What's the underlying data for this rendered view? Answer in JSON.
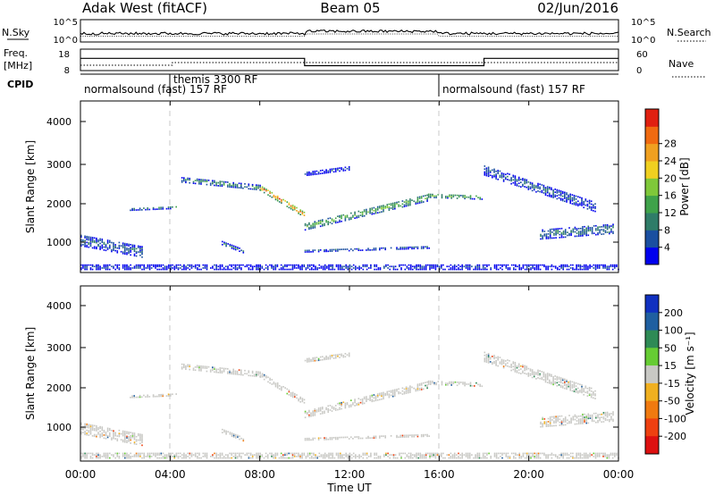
{
  "header": {
    "station": "Adak West (fitACF)",
    "beam": "Beam 05",
    "date": "02/Jun/2016"
  },
  "noise_panel": {
    "left_label": "N.Sky",
    "right_label": "N.Search",
    "left_ticks": [
      "10^5",
      "10^0"
    ],
    "right_ticks": [
      "10^5",
      "10^0"
    ]
  },
  "freq_panel": {
    "left_label_1": "Freq.",
    "left_label_2": "[MHz]",
    "right_label": "Nave",
    "left_ticks": [
      "18",
      "8"
    ],
    "right_ticks": [
      "60",
      "0"
    ],
    "freq_series": [
      {
        "t": 0,
        "v": 13.7
      },
      {
        "t": 10,
        "v": 13.7
      },
      {
        "t": 10,
        "v": 10.3
      },
      {
        "t": 18,
        "v": 10.3
      },
      {
        "t": 18,
        "v": 13.7
      },
      {
        "t": 24,
        "v": 13.7
      }
    ]
  },
  "cpid": {
    "label": "CPID",
    "segments": [
      {
        "start": 0,
        "end": 4,
        "text": "normalsound (fast) 157 RF"
      },
      {
        "start": 4,
        "end": 16,
        "text": "themis 3300 RF"
      },
      {
        "start": 16,
        "end": 24,
        "text": "normalsound (fast) 157 RF"
      }
    ]
  },
  "power_panel": {
    "ylabel": "Slant Range [km]",
    "yticks": [
      "1000",
      "2000",
      "3000",
      "4000"
    ],
    "colorbar_label": "Power [dB]",
    "colorbar_ticks": [
      "4",
      "8",
      "12",
      "16",
      "20",
      "24",
      "28"
    ],
    "colors": [
      "#0000ee",
      "#1a4fa0",
      "#2f7c68",
      "#3fa24a",
      "#7fc83a",
      "#f0d020",
      "#f0a020",
      "#f06a10",
      "#e02010"
    ]
  },
  "velocity_panel": {
    "ylabel": "Slant Range [km]",
    "yticks": [
      "1000",
      "2000",
      "3000",
      "4000"
    ],
    "colorbar_label": "Velocity [m s⁻¹]",
    "colorbar_ticks": [
      "200",
      "100",
      "50",
      "15",
      "-15",
      "-50",
      "-100",
      "-200"
    ],
    "colors": [
      "#1030c0",
      "#1f5fa0",
      "#2e8a55",
      "#66cc33",
      "#c8c8c4",
      "#f0b020",
      "#f07a10",
      "#ee4010",
      "#dd1010"
    ]
  },
  "x_axis": {
    "label": "Time UT",
    "ticks": [
      "00:00",
      "04:00",
      "08:00",
      "12:00",
      "16:00",
      "20:00",
      "00:00"
    ]
  },
  "chart_data": {
    "type": "heatmap",
    "title": "Adak West (fitACF)  Beam 05  02/Jun/2016",
    "xlabel": "Time UT",
    "ylabel": "Slant Range [km]",
    "xlim": [
      0,
      24
    ],
    "ylim": [
      180,
      4600
    ],
    "panels": [
      "Power [dB]",
      "Velocity [m s⁻¹]"
    ],
    "power_range": [
      3,
      30
    ],
    "velocity_range": [
      -250,
      250
    ],
    "echo_bands": [
      {
        "t_start": 0.0,
        "t_end": 2.8,
        "range_km": [
          1000,
          700
        ],
        "thickness_km": 300,
        "power_db": 8,
        "velocity": 0
      },
      {
        "t_start": 2.2,
        "t_end": 4.3,
        "range_km": [
          1800,
          1850
        ],
        "thickness_km": 70,
        "power_db": 10,
        "velocity": 0
      },
      {
        "t_start": 4.5,
        "t_end": 8.0,
        "range_km": [
          2550,
          2350
        ],
        "thickness_km": 120,
        "power_db": 12,
        "velocity": 0
      },
      {
        "t_start": 8.0,
        "t_end": 10.0,
        "range_km": [
          2350,
          1650
        ],
        "thickness_km": 140,
        "power_db": 24,
        "velocity": 0
      },
      {
        "t_start": 10.0,
        "t_end": 15.5,
        "range_km": [
          1350,
          2100
        ],
        "thickness_km": 180,
        "power_db": 14,
        "velocity": 0
      },
      {
        "t_start": 15.5,
        "t_end": 17.9,
        "range_km": [
          2150,
          2100
        ],
        "thickness_km": 100,
        "power_db": 14,
        "velocity": 0
      },
      {
        "t_start": 10.0,
        "t_end": 15.6,
        "range_km": [
          720,
          820
        ],
        "thickness_km": 60,
        "power_db": 8,
        "velocity": 0
      },
      {
        "t_start": 10.0,
        "t_end": 12.0,
        "range_km": [
          2700,
          2850
        ],
        "thickness_km": 80,
        "power_db": 6,
        "velocity": 0
      },
      {
        "t_start": 6.3,
        "t_end": 7.3,
        "range_km": [
          920,
          700
        ],
        "thickness_km": 80,
        "power_db": 10,
        "velocity": 0
      },
      {
        "t_start": 18.0,
        "t_end": 23.0,
        "range_km": [
          2800,
          1850
        ],
        "thickness_km": 250,
        "power_db": 8,
        "velocity": 0
      },
      {
        "t_start": 20.5,
        "t_end": 23.8,
        "range_km": [
          1150,
          1300
        ],
        "thickness_km": 250,
        "power_db": 10,
        "velocity": 0
      },
      {
        "t_start": 0.0,
        "t_end": 24.0,
        "range_km": [
          300,
          300
        ],
        "thickness_km": 120,
        "power_db": 6,
        "velocity": 0
      }
    ]
  }
}
